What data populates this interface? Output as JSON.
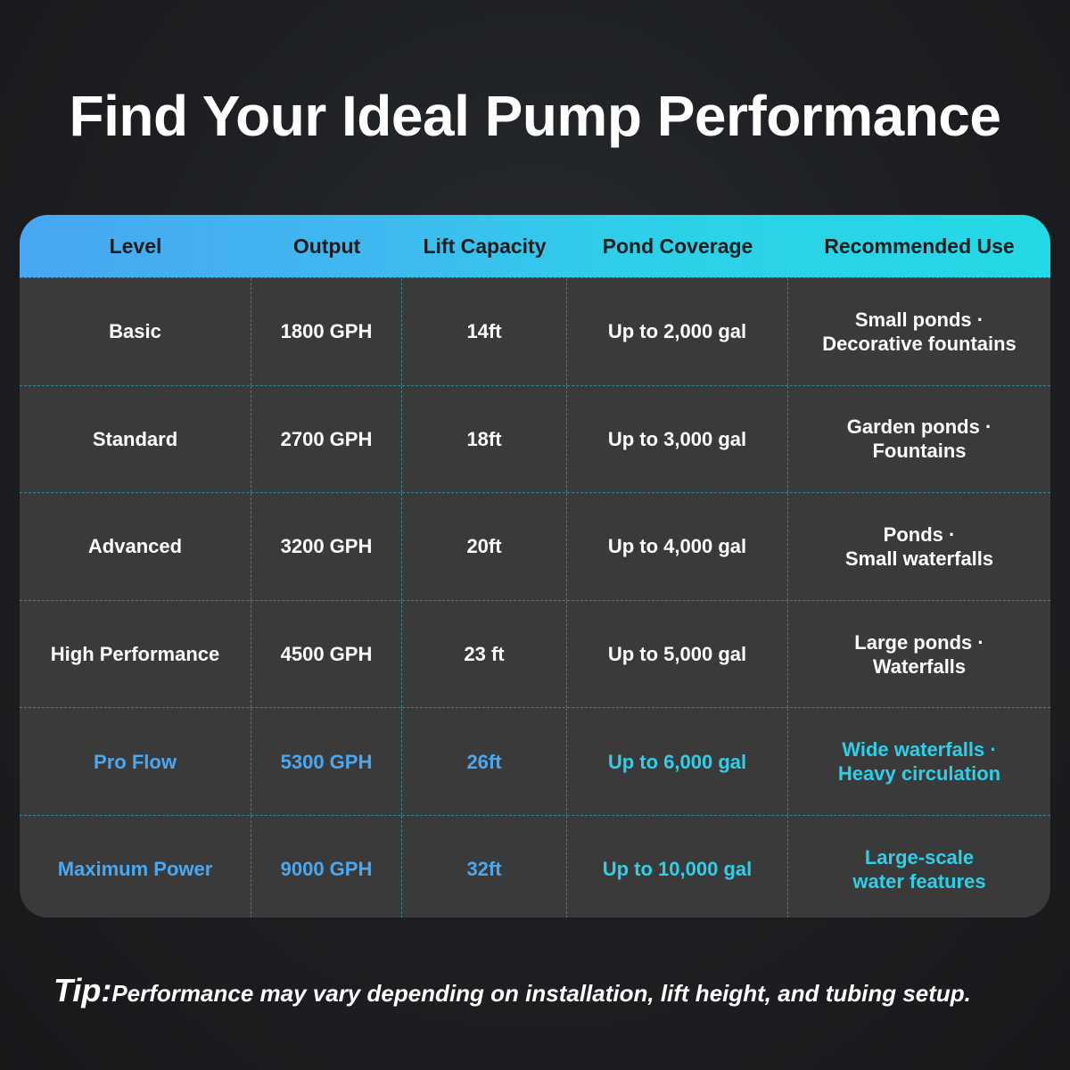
{
  "title": "Find Your Ideal Pump Performance",
  "columns": [
    "Level",
    "Output",
    "Lift Capacity",
    "Pond Coverage",
    "Recommended Use"
  ],
  "rows": [
    {
      "level": "Basic",
      "output": "1800 GPH",
      "lift": "14ft",
      "coverage": "Up to 2,000 gal",
      "use1": "Small ponds ·",
      "use2": "Decorative fountains",
      "highlight": false
    },
    {
      "level": "Standard",
      "output": "2700 GPH",
      "lift": "18ft",
      "coverage": "Up to 3,000 gal",
      "use1": "Garden ponds ·",
      "use2": "Fountains",
      "highlight": false
    },
    {
      "level": "Advanced",
      "output": "3200 GPH",
      "lift": "20ft",
      "coverage": "Up to 4,000 gal",
      "use1": "Ponds ·",
      "use2": "Small waterfalls",
      "highlight": false
    },
    {
      "level": "High Performance",
      "output": "4500 GPH",
      "lift": "23 ft",
      "coverage": "Up to 5,000 gal",
      "use1": "Large ponds ·",
      "use2": "Waterfalls",
      "highlight": false
    },
    {
      "level": "Pro Flow",
      "output": "5300 GPH",
      "lift": "26ft",
      "coverage": "Up to 6,000 gal",
      "use1": "Wide waterfalls ·",
      "use2": "Heavy circulation",
      "highlight": true
    },
    {
      "level": "Maximum Power",
      "output": "9000 GPH",
      "lift": "32ft",
      "coverage": "Up to 10,000 gal",
      "use1": "Large-scale",
      "use2": "water features",
      "highlight": true
    }
  ],
  "tip": {
    "label": "Tip:",
    "text": "Performance may vary depending on installation, lift height, and tubing setup."
  },
  "colors": {
    "header_start": "#47a7f2",
    "header_end": "#24d9e6",
    "highlight_blue": "#4aa8f2",
    "highlight_cyan": "#2dd0e8",
    "row_bg": "#3a3a3a"
  }
}
